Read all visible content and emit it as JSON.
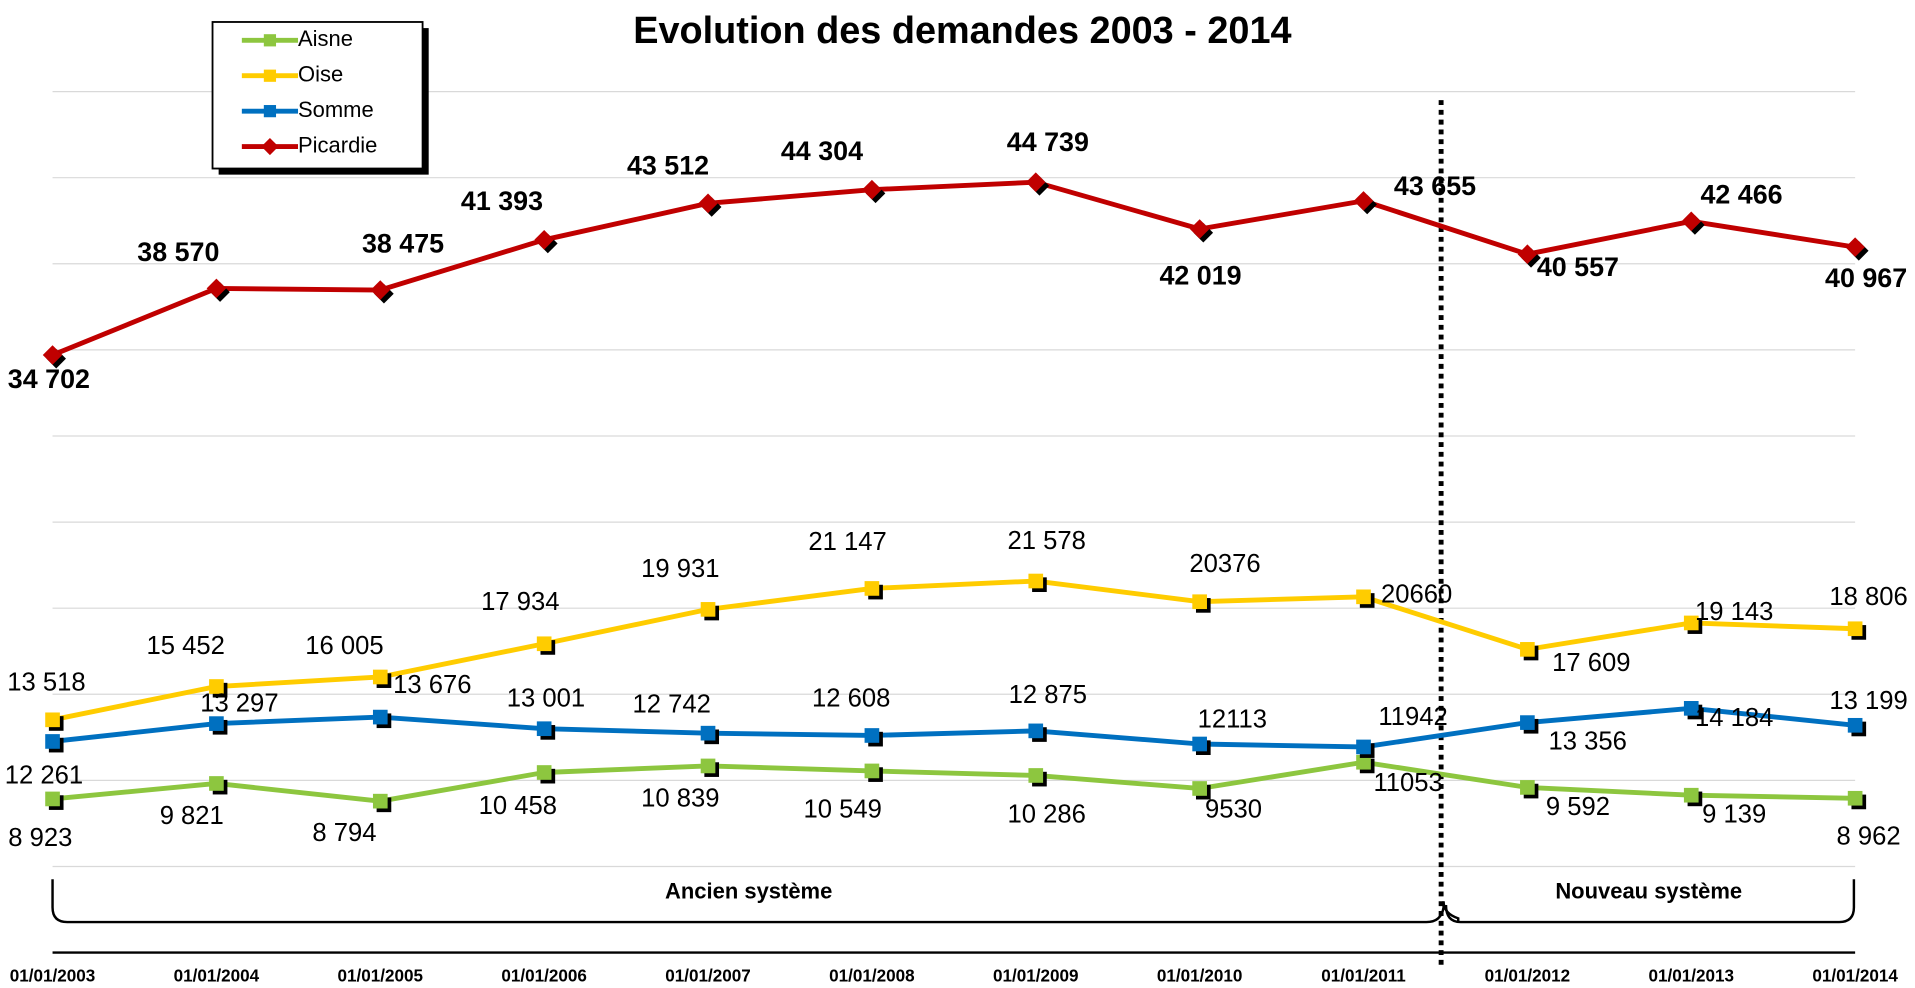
{
  "chart_data": {
    "type": "line",
    "title": "Evolution des demandes 2003 - 2014",
    "categories": [
      "01/01/2003",
      "01/01/2004",
      "01/01/2005",
      "01/01/2006",
      "01/01/2007",
      "01/01/2008",
      "01/01/2009",
      "01/01/2010",
      "01/01/2011",
      "01/01/2012",
      "01/01/2013",
      "01/01/2014"
    ],
    "series": [
      {
        "name": "Aisne",
        "color": "#8dc63f",
        "marker": "square",
        "values": [
          8923,
          9821,
          8794,
          10458,
          10839,
          10549,
          10286,
          9530,
          11053,
          9592,
          9139,
          8962
        ],
        "value_labels": [
          "8 923",
          "9 821",
          "8 794",
          "10 458",
          "10 839",
          "10 549",
          "10 286",
          "9530",
          "11053",
          "9 592",
          "9 139",
          "8 962"
        ]
      },
      {
        "name": "Oise",
        "color": "#ffcc00",
        "marker": "square",
        "values": [
          13518,
          15452,
          16005,
          17934,
          19931,
          21147,
          21578,
          20376,
          20660,
          17609,
          19143,
          18806
        ],
        "value_labels": [
          "13 518",
          "15 452",
          "16 005",
          "17 934",
          "19 931",
          "21 147",
          "21 578",
          "20376",
          "20660",
          "17 609",
          "19 143",
          "18 806"
        ]
      },
      {
        "name": "Somme",
        "color": "#0070c0",
        "marker": "square",
        "values": [
          12261,
          13297,
          13676,
          13001,
          12742,
          12608,
          12875,
          12113,
          11942,
          13356,
          14184,
          13199
        ],
        "value_labels": [
          "12 261",
          "13 297",
          "13 676",
          "13 001",
          "12 742",
          "12 608",
          "12 875",
          "12113",
          "11942",
          "13 356",
          "14 184",
          "13 199"
        ]
      },
      {
        "name": "Picardie",
        "color": "#c00000",
        "marker": "diamond",
        "values": [
          34702,
          38570,
          38475,
          41393,
          43512,
          44304,
          44739,
          42019,
          43655,
          40557,
          42466,
          40967
        ],
        "value_labels": [
          "34 702",
          "38 570",
          "38 475",
          "41 393",
          "43 512",
          "44 304",
          "44 739",
          "42 019",
          "43 655",
          "40 557",
          "42 466",
          "40 967"
        ]
      }
    ],
    "annotations": [
      "Ancien système",
      "Nouveau système"
    ],
    "ylim": [
      0,
      50000
    ],
    "yticks": [
      0,
      5000,
      10000,
      15000,
      20000,
      25000,
      30000,
      35000,
      40000,
      45000,
      50000
    ],
    "grid": true,
    "legend": "top-left"
  }
}
